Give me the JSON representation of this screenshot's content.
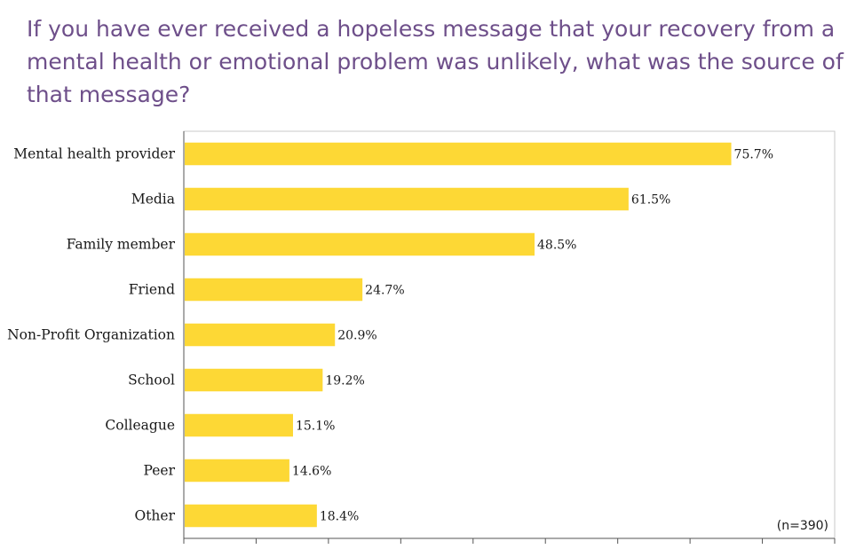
{
  "chart_data": {
    "type": "bar",
    "orientation": "horizontal",
    "title": "If you have ever received a hopeless message that your recovery from a mental health or emotional problem was unlikely, what was the source of that message?",
    "categories": [
      "Mental health provider",
      "Media",
      "Family member",
      "Friend",
      "Non-Profit Organization",
      "School",
      "Colleague",
      "Peer",
      "Other"
    ],
    "values": [
      75.7,
      61.5,
      48.5,
      24.7,
      20.9,
      19.2,
      15.1,
      14.6,
      18.4
    ],
    "value_labels": [
      "75.7%",
      "61.5%",
      "48.5%",
      "24.7%",
      "20.9%",
      "19.2%",
      "15.1%",
      "14.6%",
      "18.4%"
    ],
    "xlim": [
      0,
      90
    ],
    "x_tick_step": 10,
    "grid": false,
    "bar_color": "#fdd835",
    "annotation": "(n=390)"
  }
}
